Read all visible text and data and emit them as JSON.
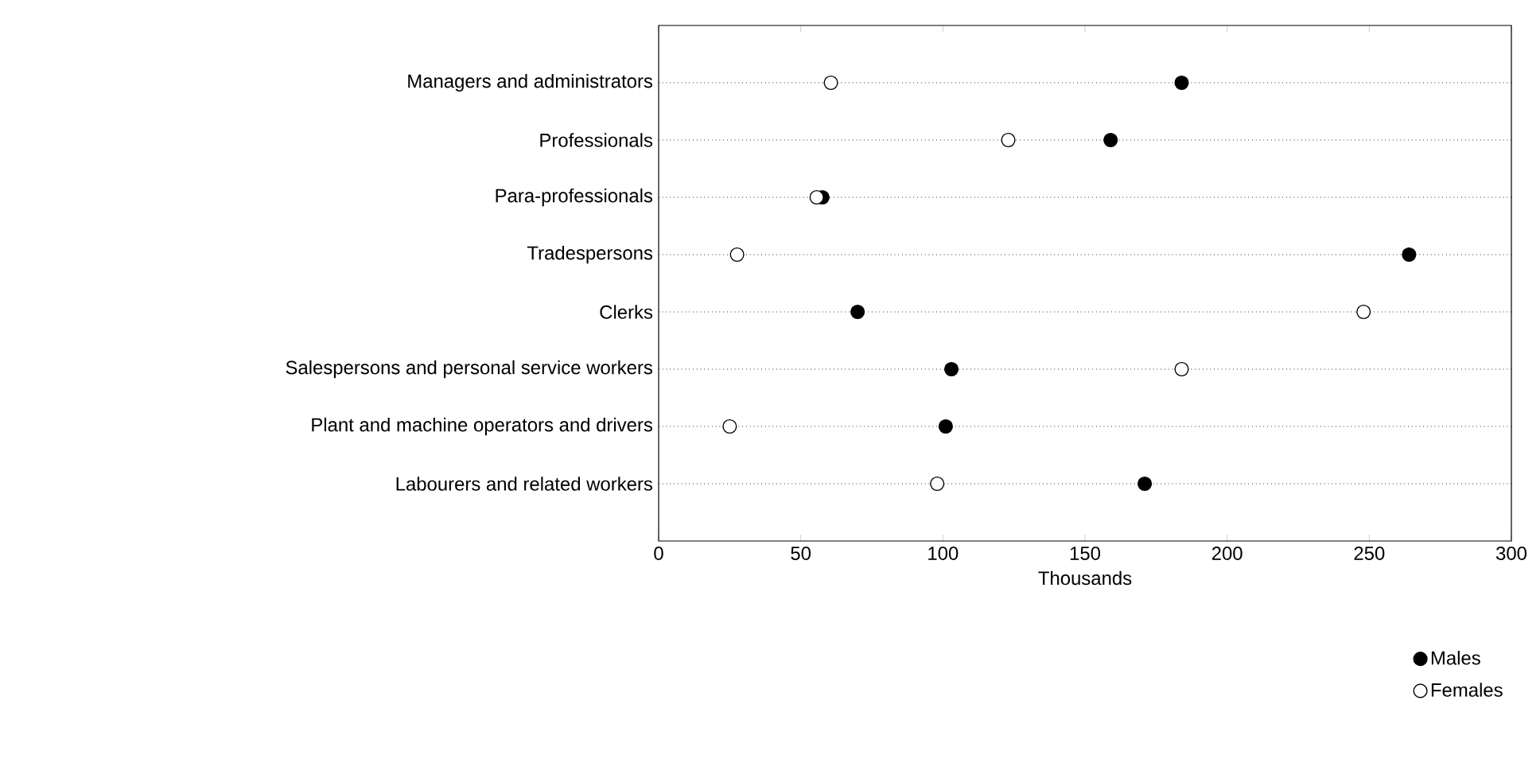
{
  "chart_data": {
    "type": "scatter",
    "orientation": "horizontal",
    "xlabel": "Thousands",
    "categories": [
      "Managers and administrators",
      "Professionals",
      "Para-professionals",
      "Tradespersons",
      "Clerks",
      "Salespersons and personal service workers",
      "Plant and machine operators and drivers",
      "Labourers and related workers"
    ],
    "series": [
      {
        "name": "Males",
        "color": "#000000",
        "values": [
          184,
          159,
          57.6,
          264,
          70,
          103,
          101,
          171
        ]
      },
      {
        "name": "Females",
        "color": "#ffffff",
        "values": [
          60.6,
          123,
          55.6,
          27.6,
          248,
          184,
          25,
          98
        ]
      }
    ],
    "xlim": [
      0,
      300
    ],
    "xticks": [
      0,
      50,
      100,
      150,
      200,
      250,
      300
    ],
    "grid": "y",
    "legend": "bottom right",
    "marker": "circle"
  }
}
